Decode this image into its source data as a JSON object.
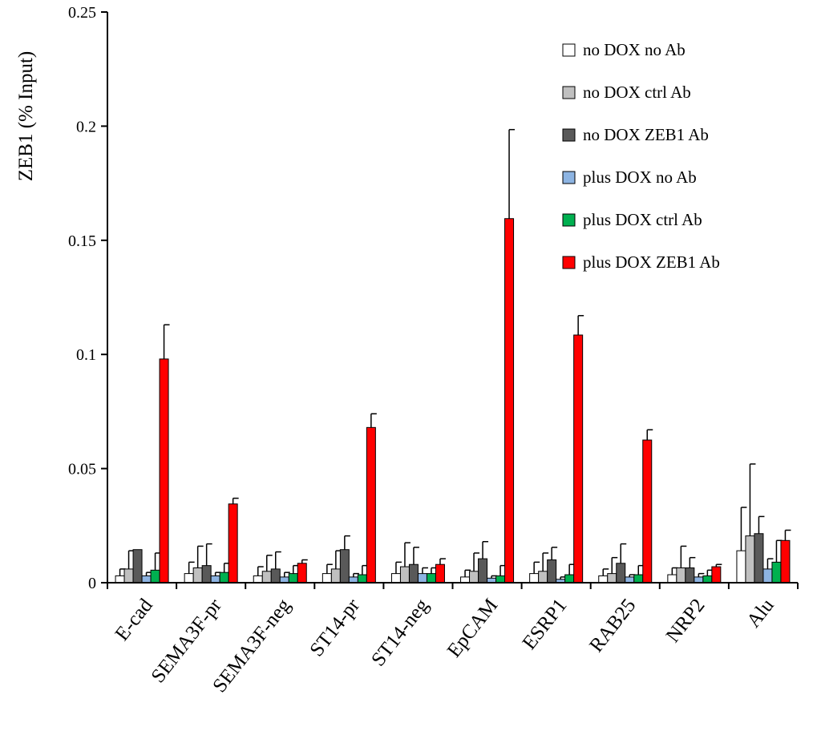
{
  "chart_data": {
    "type": "bar",
    "title": "",
    "xlabel": "",
    "ylabel": "ZEB1 (% Input)",
    "ylim": [
      0,
      0.25
    ],
    "yticks": [
      "0",
      "0.05",
      "0.1",
      "0.15",
      "0.2",
      "0.25"
    ],
    "ytick_values": [
      0,
      0.05,
      0.1,
      0.15,
      0.2,
      0.25
    ],
    "grid": false,
    "legend_position": "top-right",
    "categories": [
      "E-cad",
      "SEMA3F-pr",
      "SEMA3F-neg",
      "ST14-pr",
      "ST14-neg",
      "EpCAM",
      "ESRP1",
      "RAB25",
      "NRP2",
      "Alu"
    ],
    "series": [
      {
        "name": "no DOX no Ab",
        "color": "#ffffff",
        "values": [
          0.003,
          0.004,
          0.003,
          0.004,
          0.004,
          0.0025,
          0.004,
          0.003,
          0.0035,
          0.014
        ],
        "errors": [
          0.003,
          0.005,
          0.004,
          0.004,
          0.005,
          0.003,
          0.005,
          0.003,
          0.003,
          0.019
        ]
      },
      {
        "name": "no DOX ctrl Ab",
        "color": "#c0c0c0",
        "values": [
          0.006,
          0.0065,
          0.005,
          0.006,
          0.007,
          0.005,
          0.005,
          0.004,
          0.0065,
          0.0205
        ],
        "errors": [
          0.008,
          0.0095,
          0.007,
          0.008,
          0.0105,
          0.008,
          0.008,
          0.007,
          0.0095,
          0.0315
        ]
      },
      {
        "name": "no DOX ZEB1 Ab",
        "color": "#595959",
        "values": [
          0.0145,
          0.0075,
          0.006,
          0.0145,
          0.008,
          0.0105,
          0.01,
          0.0085,
          0.0065,
          0.0215
        ],
        "errors": [
          0.0,
          0.0095,
          0.0075,
          0.006,
          0.0075,
          0.0075,
          0.0055,
          0.0085,
          0.0045,
          0.0075
        ]
      },
      {
        "name": "plus DOX no Ab",
        "color": "#8db4e2",
        "values": [
          0.003,
          0.003,
          0.0025,
          0.0025,
          0.004,
          0.002,
          0.0015,
          0.0025,
          0.0025,
          0.006
        ],
        "errors": [
          0.0015,
          0.0015,
          0.002,
          0.0015,
          0.0025,
          0.001,
          0.001,
          0.001,
          0.0015,
          0.0045
        ]
      },
      {
        "name": "plus DOX ctrl Ab",
        "color": "#00b050",
        "values": [
          0.0055,
          0.0045,
          0.004,
          0.0035,
          0.004,
          0.003,
          0.0035,
          0.0035,
          0.003,
          0.009
        ],
        "errors": [
          0.0075,
          0.004,
          0.0035,
          0.004,
          0.0025,
          0.0045,
          0.0045,
          0.004,
          0.0025,
          0.0095
        ]
      },
      {
        "name": "plus DOX ZEB1 Ab",
        "color": "#ff0000",
        "values": [
          0.098,
          0.0345,
          0.0085,
          0.068,
          0.008,
          0.1595,
          0.1085,
          0.0625,
          0.007,
          0.0185
        ],
        "errors": [
          0.015,
          0.0025,
          0.0015,
          0.006,
          0.0025,
          0.039,
          0.0085,
          0.0045,
          0.001,
          0.0045
        ]
      }
    ]
  }
}
